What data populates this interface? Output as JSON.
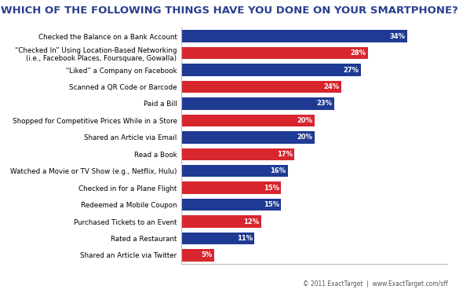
{
  "chart_data": {
    "type": "bar",
    "orientation": "horizontal",
    "title": "WHICH OF THE FOLLOWING THINGS HAVE YOU DONE ON YOUR SMARTPHONE?",
    "categories": [
      "Checked the Balance on a Bank Account",
      "“Checked In” Using Location-Based Networking\n(i.e., Facebook Places, Foursquare, Gowalla)",
      "“Liked” a Company on Facebook",
      "Scanned a QR Code or Barcode",
      "Paid a Bill",
      "Shopped for Competitive Prices While in a Store",
      "Shared an Article via Email",
      "Read a Book",
      "Watched a Movie or TV Show (e.g., Netflix, Hulu)",
      "Checked in for a Plane Flight",
      "Redeemed a Mobile Coupon",
      "Purchased Tickets to an Event",
      "Rated a Restaurant",
      "Shared an Article via Twitter"
    ],
    "values": [
      34,
      28,
      27,
      24,
      23,
      20,
      20,
      17,
      16,
      15,
      15,
      12,
      11,
      5
    ],
    "value_labels": [
      "34%",
      "28%",
      "27%",
      "24%",
      "23%",
      "20%",
      "20%",
      "17%",
      "16%",
      "15%",
      "15%",
      "12%",
      "11%",
      "5%"
    ],
    "colors": [
      "#1f3a93",
      "#d7262e",
      "#1f3a93",
      "#d7262e",
      "#1f3a93",
      "#d7262e",
      "#1f3a93",
      "#d7262e",
      "#1f3a93",
      "#d7262e",
      "#1f3a93",
      "#d7262e",
      "#1f3a93",
      "#d7262e"
    ],
    "xlim": [
      0,
      40
    ],
    "data_labels": true,
    "tick_labels": "y",
    "grid": false,
    "source": "© 2011 ExactTarget  |  www.ExactTarget.com/sff"
  }
}
